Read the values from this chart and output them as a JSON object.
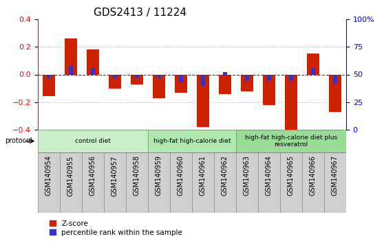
{
  "title": "GDS2413 / 11224",
  "samples": [
    "GSM140954",
    "GSM140955",
    "GSM140956",
    "GSM140957",
    "GSM140958",
    "GSM140959",
    "GSM140960",
    "GSM140961",
    "GSM140962",
    "GSM140963",
    "GSM140964",
    "GSM140965",
    "GSM140966",
    "GSM140967"
  ],
  "zscore": [
    -0.155,
    0.26,
    0.18,
    -0.1,
    -0.07,
    -0.17,
    -0.13,
    -0.38,
    -0.14,
    -0.12,
    -0.22,
    -0.4,
    0.15,
    -0.27
  ],
  "percentile_raw": [
    47,
    58,
    55,
    47,
    47,
    47,
    43,
    40,
    52,
    44,
    45,
    44,
    55,
    42
  ],
  "ylim": [
    -0.4,
    0.4
  ],
  "yticks_left": [
    -0.4,
    -0.2,
    0.0,
    0.2,
    0.4
  ],
  "yticks_right": [
    0,
    25,
    50,
    75,
    100
  ],
  "groups": [
    {
      "label": "control diet",
      "start": 0,
      "end": 5,
      "color": "#c8efc8"
    },
    {
      "label": "high-fat high-calorie diet",
      "start": 5,
      "end": 9,
      "color": "#b0e8b0"
    },
    {
      "label": "high-fat high-calorie diet plus\nresveratrol",
      "start": 9,
      "end": 14,
      "color": "#98dc98"
    }
  ],
  "bar_color_red": "#cc2200",
  "bar_color_blue": "#3333cc",
  "bar_width": 0.55,
  "zero_line_color": "#cc0000",
  "bg_color": "#ffffff",
  "sample_cell_color": "#d0d0d0",
  "sample_cell_border": "#888888",
  "title_fontsize": 11,
  "tick_label_fontsize": 7,
  "axis_tick_fontsize": 8,
  "legend_label_red": "Z-score",
  "legend_label_blue": "percentile rank within the sample",
  "protocol_label": "protocol"
}
